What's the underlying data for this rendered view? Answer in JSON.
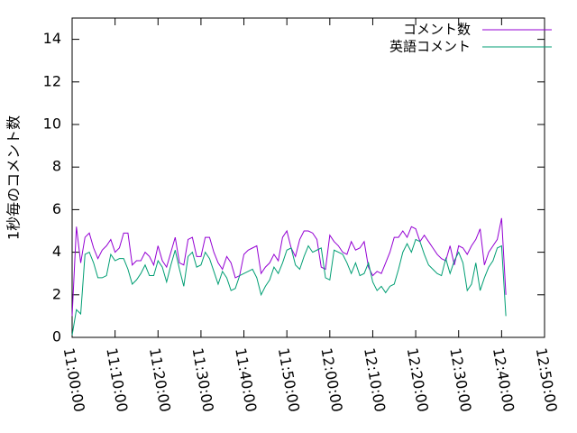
{
  "chart_data": {
    "type": "line",
    "ylabel": "1秒毎のコメント数",
    "xlim": [
      "11:00:00",
      "12:50:00"
    ],
    "xticks": [
      "11:00:00",
      "11:10:00",
      "11:20:00",
      "11:30:00",
      "11:40:00",
      "11:50:00",
      "12:00:00",
      "12:10:00",
      "12:20:00",
      "12:30:00",
      "12:40:00",
      "12:50:00"
    ],
    "ylim": [
      0,
      15
    ],
    "yticks": [
      0,
      2,
      4,
      6,
      8,
      10,
      12,
      14
    ],
    "legend": "top-right",
    "x": [
      "11:00:00",
      "11:01:00",
      "11:02:00",
      "11:03:00",
      "11:04:00",
      "11:05:00",
      "11:06:00",
      "11:07:00",
      "11:08:00",
      "11:09:00",
      "11:10:00",
      "11:11:00",
      "11:12:00",
      "11:13:00",
      "11:14:00",
      "11:15:00",
      "11:16:00",
      "11:17:00",
      "11:18:00",
      "11:19:00",
      "11:20:00",
      "11:21:00",
      "11:22:00",
      "11:23:00",
      "11:24:00",
      "11:25:00",
      "11:26:00",
      "11:27:00",
      "11:28:00",
      "11:29:00",
      "11:30:00",
      "11:31:00",
      "11:32:00",
      "11:33:00",
      "11:34:00",
      "11:35:00",
      "11:36:00",
      "11:37:00",
      "11:38:00",
      "11:39:00",
      "11:40:00",
      "11:41:00",
      "11:42:00",
      "11:43:00",
      "11:44:00",
      "11:45:00",
      "11:46:00",
      "11:47:00",
      "11:48:00",
      "11:49:00",
      "11:50:00",
      "11:51:00",
      "11:52:00",
      "11:53:00",
      "11:54:00",
      "11:55:00",
      "11:56:00",
      "11:57:00",
      "11:58:00",
      "11:59:00",
      "12:00:00",
      "12:01:00",
      "12:02:00",
      "12:03:00",
      "12:04:00",
      "12:05:00",
      "12:06:00",
      "12:07:00",
      "12:08:00",
      "12:09:00",
      "12:10:00",
      "12:11:00",
      "12:12:00",
      "12:13:00",
      "12:14:00",
      "12:15:00",
      "12:16:00",
      "12:17:00",
      "12:18:00",
      "12:19:00",
      "12:20:00",
      "12:21:00",
      "12:22:00",
      "12:23:00",
      "12:24:00",
      "12:25:00",
      "12:26:00",
      "12:27:00",
      "12:28:00",
      "12:29:00",
      "12:30:00",
      "12:31:00",
      "12:32:00",
      "12:33:00",
      "12:34:00",
      "12:35:00",
      "12:36:00",
      "12:37:00",
      "12:38:00",
      "12:39:00",
      "12:40:00",
      "12:41:00"
    ],
    "series": [
      {
        "name": "コメント数",
        "color": "#9400d3",
        "values": [
          1.0,
          5.2,
          3.5,
          4.7,
          4.9,
          4.2,
          3.7,
          4.1,
          4.3,
          4.6,
          4.0,
          4.2,
          4.9,
          4.9,
          3.4,
          3.6,
          3.6,
          4.0,
          3.8,
          3.4,
          4.3,
          3.6,
          3.3,
          4.0,
          4.7,
          3.5,
          3.4,
          4.6,
          4.7,
          3.8,
          3.8,
          4.7,
          4.7,
          4.0,
          3.5,
          3.2,
          3.8,
          3.5,
          2.8,
          2.9,
          3.9,
          4.1,
          4.2,
          4.3,
          3.0,
          3.3,
          3.5,
          3.9,
          3.6,
          4.7,
          5.0,
          4.2,
          3.8,
          4.6,
          5.0,
          5.0,
          4.9,
          4.6,
          3.3,
          3.2,
          4.8,
          4.5,
          4.3,
          4.0,
          3.9,
          4.5,
          4.1,
          4.2,
          4.5,
          3.3,
          2.9,
          3.1,
          3.0,
          3.5,
          4.0,
          4.7,
          4.7,
          5.0,
          4.7,
          5.2,
          5.1,
          4.5,
          4.8,
          4.5,
          4.2,
          3.9,
          3.7,
          3.6,
          4.3,
          3.4,
          4.3,
          4.2,
          3.9,
          4.3,
          4.6,
          5.1,
          3.4,
          4.0,
          4.3,
          4.6,
          5.6,
          2.0
        ]
      },
      {
        "name": "英語コメント",
        "color": "#009e73",
        "values": [
          0.1,
          1.3,
          1.1,
          3.9,
          4.0,
          3.5,
          2.8,
          2.8,
          2.9,
          3.9,
          3.6,
          3.7,
          3.7,
          3.2,
          2.5,
          2.7,
          3.0,
          3.4,
          2.9,
          2.9,
          3.6,
          3.3,
          2.6,
          3.4,
          4.1,
          3.2,
          2.4,
          3.8,
          4.0,
          3.3,
          3.4,
          4.0,
          3.7,
          3.1,
          2.5,
          3.1,
          2.8,
          2.2,
          2.3,
          2.9,
          3.0,
          3.1,
          3.2,
          2.8,
          2.0,
          2.4,
          2.7,
          3.3,
          3.0,
          3.5,
          4.1,
          4.2,
          3.4,
          3.2,
          3.8,
          4.3,
          4.0,
          4.1,
          4.2,
          2.8,
          2.7,
          4.1,
          4.0,
          3.9,
          3.5,
          3.0,
          3.5,
          2.9,
          3.0,
          3.5,
          2.6,
          2.2,
          2.4,
          2.1,
          2.4,
          2.5,
          3.2,
          4.0,
          4.4,
          4.0,
          4.6,
          4.5,
          3.9,
          3.4,
          3.2,
          3.0,
          2.9,
          3.7,
          3.0,
          3.6,
          4.0,
          3.5,
          2.2,
          2.5,
          3.5,
          2.2,
          2.8,
          3.3,
          3.6,
          4.2,
          4.3,
          1.0
        ]
      }
    ]
  }
}
